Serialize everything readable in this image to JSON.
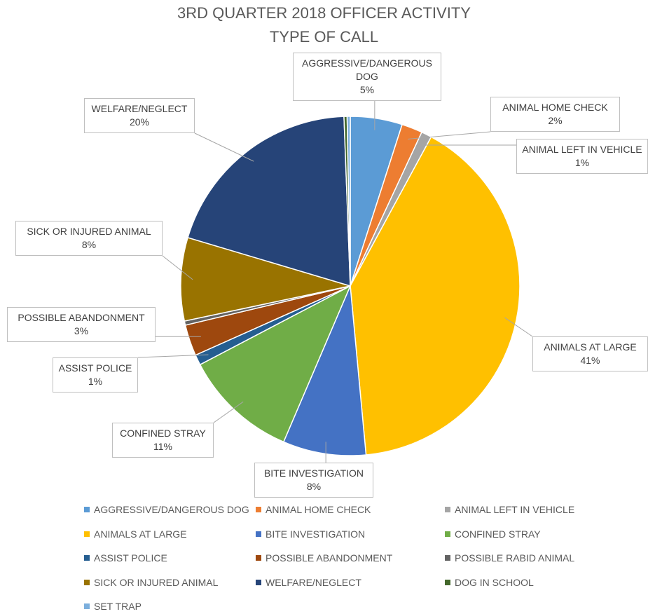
{
  "chart_data": {
    "type": "pie",
    "title": "3RD QUARTER 2018 OFFICER ACTIVITY",
    "subtitle": "TYPE OF CALL",
    "categories": [
      "AGGRESSIVE/DANGEROUS DOG",
      "ANIMAL HOME CHECK",
      "ANIMAL LEFT IN VEHICLE",
      "ANIMALS AT LARGE",
      "BITE INVESTIGATION",
      "CONFINED STRAY",
      "ASSIST POLICE",
      "POSSIBLE ABANDONMENT",
      "POSSIBLE RABID ANIMAL",
      "SICK OR INJURED ANIMAL",
      "WELFARE/NEGLECT",
      "DOG IN SCHOOL",
      "SET TRAP"
    ],
    "values": [
      5,
      2,
      1,
      41,
      8,
      11,
      1,
      3,
      0.4,
      8,
      20,
      0.3,
      0.3
    ],
    "value_labels": [
      "5%",
      "2%",
      "1%",
      "41%",
      "8%",
      "11%",
      "1%",
      "3%",
      null,
      "8%",
      "20%",
      null,
      null
    ],
    "colors": [
      "#5b9bd5",
      "#ed7d31",
      "#a5a5a5",
      "#ffc000",
      "#4472c4",
      "#70ad47",
      "#255e91",
      "#9e480e",
      "#636363",
      "#997300",
      "#264478",
      "#43682b",
      "#7cafdd"
    ],
    "legend": "bottom"
  }
}
